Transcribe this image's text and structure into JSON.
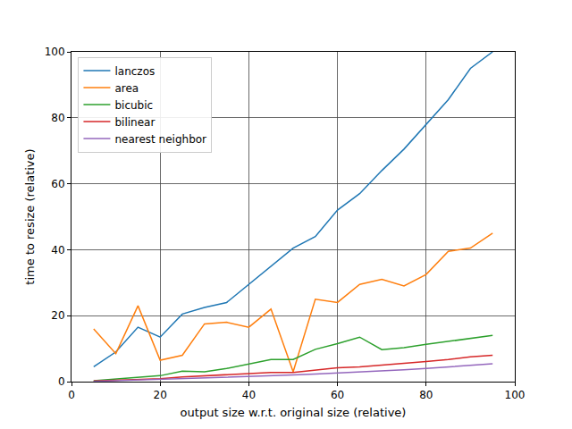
{
  "chart_data": {
    "type": "line",
    "x_label": "output size w.r.t. original size (relative)",
    "y_label": "time to resize (relative)",
    "x": [
      5,
      10,
      15,
      20,
      25,
      30,
      35,
      40,
      45,
      50,
      55,
      60,
      65,
      70,
      75,
      80,
      85,
      90,
      95
    ],
    "series": [
      {
        "name": "lanczos",
        "color": "#1f77b4",
        "values": [
          4.5,
          9,
          16.5,
          13.5,
          20.5,
          22.5,
          24,
          29.5,
          35,
          40.5,
          44,
          52,
          57,
          64,
          70.5,
          78,
          85.5,
          95,
          100
        ]
      },
      {
        "name": "area",
        "color": "#ff7f0e",
        "values": [
          16,
          8.5,
          23,
          6.5,
          8,
          17.5,
          18,
          16.5,
          22,
          3,
          25,
          24,
          29.5,
          31,
          29,
          32.5,
          39.5,
          40.5,
          45
        ]
      },
      {
        "name": "bicubic",
        "color": "#2ca02c",
        "values": [
          0.3,
          0.8,
          1.3,
          1.8,
          3.2,
          3,
          4,
          5.3,
          6.7,
          6.7,
          9.8,
          11.5,
          13.5,
          9.7,
          10.3,
          11.3,
          12.2,
          13.2,
          14
        ]
      },
      {
        "name": "bilinear",
        "color": "#d62728",
        "values": [
          0.2,
          0.5,
          0.6,
          0.9,
          1.4,
          1.8,
          2.1,
          2.5,
          2.8,
          2.8,
          3.5,
          4.2,
          4.5,
          5.1,
          5.6,
          6.1,
          6.7,
          7.5,
          8
        ]
      },
      {
        "name": "nearest neighbor",
        "color": "#9467bd",
        "values": [
          0.1,
          0.3,
          0.4,
          0.6,
          0.8,
          1,
          1.2,
          1.5,
          1.7,
          2,
          2.3,
          2.6,
          2.9,
          3.2,
          3.6,
          4,
          4.4,
          4.9,
          5.4
        ]
      }
    ],
    "xlim": [
      0,
      100
    ],
    "xticks": [
      0,
      20,
      40,
      60,
      80,
      100
    ],
    "ylim": [
      0,
      100
    ],
    "yticks": [
      0,
      20,
      40,
      60,
      80,
      100
    ],
    "grid": true,
    "legend": "upper left"
  }
}
